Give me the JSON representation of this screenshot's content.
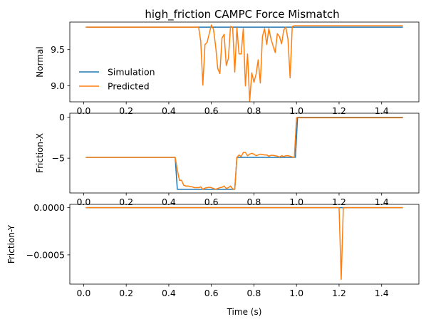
{
  "figure": {
    "title": "high_friction CAMPC Force Mismatch",
    "legend": {
      "placement": "lower-left of top panel",
      "entries": [
        "Simulation",
        "Predicted"
      ]
    }
  },
  "colors": {
    "simulation": "#1f77b4",
    "predicted": "#ff7f0e"
  },
  "chart_data": [
    {
      "type": "line",
      "title": "high_friction CAMPC Force Mismatch",
      "xlabel": "",
      "ylabel": "Normal",
      "xlim": [
        -0.065,
        1.575
      ],
      "ylim": [
        8.78,
        9.88
      ],
      "xticks": [
        0.0,
        0.2,
        0.4,
        0.6,
        0.8,
        1.0,
        1.2,
        1.4
      ],
      "xtick_labels": [
        "0.0",
        "0.2",
        "0.4",
        "0.6",
        "0.8",
        "1.0",
        "1.2",
        "1.4"
      ],
      "yticks": [
        9.0,
        9.5
      ],
      "ytick_labels": [
        "9.0",
        "9.5"
      ],
      "legend": "lower-left",
      "series": [
        {
          "name": "Simulation",
          "x": [
            0.01,
            1.5
          ],
          "y": [
            9.81,
            9.81
          ]
        },
        {
          "name": "Predicted",
          "x": [
            0.01,
            0.54,
            0.55,
            0.56,
            0.57,
            0.58,
            0.59,
            0.6,
            0.61,
            0.62,
            0.63,
            0.64,
            0.65,
            0.66,
            0.67,
            0.68,
            0.69,
            0.7,
            0.71,
            0.72,
            0.73,
            0.74,
            0.75,
            0.76,
            0.77,
            0.78,
            0.79,
            0.8,
            0.81,
            0.82,
            0.83,
            0.84,
            0.85,
            0.86,
            0.87,
            0.88,
            0.89,
            0.9,
            0.91,
            0.92,
            0.93,
            0.94,
            0.95,
            0.96,
            0.97,
            0.98,
            0.99,
            1.0,
            1.01,
            1.5
          ],
          "y": [
            9.81,
            9.81,
            9.62,
            9.01,
            9.57,
            9.6,
            9.72,
            9.84,
            9.78,
            9.55,
            9.24,
            9.17,
            9.66,
            9.71,
            9.28,
            9.38,
            9.82,
            9.81,
            9.19,
            9.8,
            9.44,
            9.44,
            9.79,
            9.0,
            9.44,
            8.79,
            9.18,
            9.05,
            9.16,
            9.36,
            9.04,
            9.68,
            9.79,
            9.57,
            9.79,
            9.65,
            9.55,
            9.46,
            9.72,
            9.68,
            9.58,
            9.77,
            9.81,
            9.64,
            9.11,
            9.82,
            9.83,
            9.83,
            9.83,
            9.83
          ]
        }
      ]
    },
    {
      "type": "line",
      "xlabel": "",
      "ylabel": "Friction-X",
      "xlim": [
        -0.065,
        1.575
      ],
      "ylim": [
        -9.25,
        0.5
      ],
      "xticks": [
        0.0,
        0.2,
        0.4,
        0.6,
        0.8,
        1.0,
        1.2,
        1.4
      ],
      "xtick_labels": [
        "0.0",
        "0.2",
        "0.4",
        "0.6",
        "0.8",
        "1.0",
        "1.2",
        "1.4"
      ],
      "yticks": [
        -5,
        0
      ],
      "ytick_labels": [
        "−5",
        "0"
      ],
      "series": [
        {
          "name": "Simulation",
          "x": [
            0.01,
            0.43,
            0.44,
            0.71,
            0.72,
            0.995,
            1.005,
            1.5
          ],
          "y": [
            -4.9,
            -4.9,
            -8.8,
            -8.8,
            -4.9,
            -4.9,
            0.0,
            0.0
          ]
        },
        {
          "name": "Predicted",
          "x": [
            0.01,
            0.43,
            0.44,
            0.45,
            0.46,
            0.47,
            0.48,
            0.49,
            0.5,
            0.51,
            0.52,
            0.53,
            0.54,
            0.55,
            0.56,
            0.57,
            0.58,
            0.59,
            0.6,
            0.61,
            0.62,
            0.63,
            0.64,
            0.65,
            0.66,
            0.67,
            0.68,
            0.69,
            0.7,
            0.71,
            0.72,
            0.73,
            0.74,
            0.75,
            0.76,
            0.77,
            0.78,
            0.79,
            0.8,
            0.81,
            0.82,
            0.83,
            0.84,
            0.85,
            0.86,
            0.87,
            0.88,
            0.89,
            0.9,
            0.91,
            0.92,
            0.93,
            0.94,
            0.95,
            0.96,
            0.97,
            0.98,
            0.99,
            1.0,
            1.01,
            1.5
          ],
          "y": [
            -4.9,
            -4.9,
            -6.4,
            -7.7,
            -7.7,
            -8.3,
            -8.4,
            -8.4,
            -8.45,
            -8.5,
            -8.6,
            -8.6,
            -8.6,
            -8.5,
            -8.8,
            -8.65,
            -8.6,
            -8.55,
            -8.6,
            -8.7,
            -8.8,
            -8.7,
            -8.6,
            -8.55,
            -8.4,
            -8.7,
            -8.6,
            -8.4,
            -8.75,
            -8.8,
            -4.9,
            -4.6,
            -4.8,
            -4.3,
            -4.3,
            -4.7,
            -4.5,
            -4.4,
            -4.5,
            -4.7,
            -4.6,
            -4.5,
            -4.55,
            -4.6,
            -4.6,
            -4.75,
            -4.65,
            -4.65,
            -4.7,
            -4.75,
            -4.85,
            -4.7,
            -4.8,
            -4.7,
            -4.7,
            -4.75,
            -4.85,
            -4.9,
            -0.05,
            -0.05,
            -0.05
          ]
        }
      ]
    },
    {
      "type": "line",
      "xlabel": "Time (s)",
      "ylabel": "Friction-Y",
      "xlim": [
        -0.065,
        1.575
      ],
      "ylim": [
        -0.00081,
        3.5e-05
      ],
      "xticks": [
        0.0,
        0.2,
        0.4,
        0.6,
        0.8,
        1.0,
        1.2,
        1.4
      ],
      "xtick_labels": [
        "0.0",
        "0.2",
        "0.4",
        "0.6",
        "0.8",
        "1.0",
        "1.2",
        "1.4"
      ],
      "yticks": [
        0.0,
        -0.0005
      ],
      "ytick_labels": [
        "0.0000",
        "−0.0005"
      ],
      "series": [
        {
          "name": "Simulation",
          "x": [
            0.01,
            1.5
          ],
          "y": [
            0.0,
            0.0
          ]
        },
        {
          "name": "Predicted",
          "x": [
            0.01,
            1.2,
            1.21,
            1.22,
            1.5
          ],
          "y": [
            0.0,
            0.0,
            -0.00076,
            0.0,
            0.0
          ]
        }
      ]
    }
  ]
}
